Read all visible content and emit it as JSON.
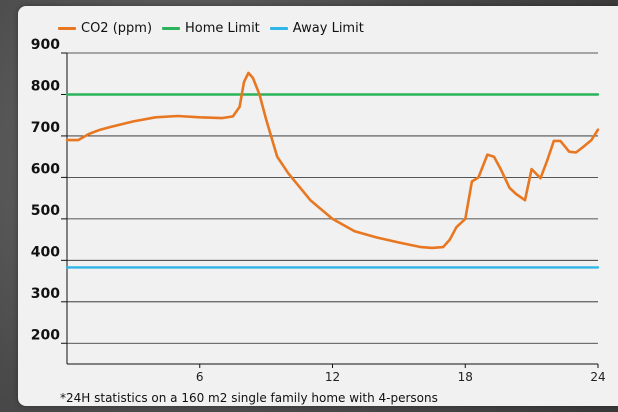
{
  "chart_data": {
    "type": "line",
    "title": "",
    "xlabel": "",
    "ylabel": "",
    "xlim": [
      0,
      24
    ],
    "ylim": [
      150,
      900
    ],
    "yticks": [
      200,
      300,
      400,
      500,
      600,
      700,
      800,
      900
    ],
    "xticks": [
      6,
      12,
      18,
      24
    ],
    "grid": true,
    "legend_position": "top-left",
    "series": [
      {
        "name": "CO2 (ppm)",
        "color": "#e87722",
        "x": [
          0,
          0.5,
          1,
          1.5,
          2,
          3,
          4,
          5,
          6,
          7,
          7.5,
          7.8,
          8.0,
          8.2,
          8.4,
          8.7,
          9.0,
          9.5,
          10,
          11,
          12,
          13,
          14,
          15,
          16,
          16.5,
          17,
          17.3,
          17.6,
          18,
          18.3,
          18.6,
          19,
          19.3,
          19.6,
          20,
          20.3,
          20.7,
          21,
          21.4,
          21.7,
          22,
          22.3,
          22.7,
          23,
          23.3,
          23.7,
          24
        ],
        "y": [
          690,
          690,
          705,
          715,
          722,
          735,
          745,
          748,
          745,
          743,
          747,
          770,
          830,
          852,
          840,
          800,
          740,
          650,
          610,
          545,
          500,
          470,
          455,
          443,
          432,
          430,
          432,
          450,
          480,
          500,
          590,
          600,
          655,
          650,
          620,
          575,
          560,
          545,
          620,
          598,
          640,
          688,
          688,
          662,
          660,
          672,
          690,
          715
        ]
      },
      {
        "name": "Home Limit",
        "color": "#2bb35b",
        "x": [
          0,
          24
        ],
        "y": [
          800,
          800
        ]
      },
      {
        "name": "Away Limit",
        "color": "#2fb5e8",
        "x": [
          0,
          24
        ],
        "y": [
          383,
          383
        ]
      }
    ]
  },
  "footnote": "*24H statistics on a 160 m2 single family home with 4-persons"
}
